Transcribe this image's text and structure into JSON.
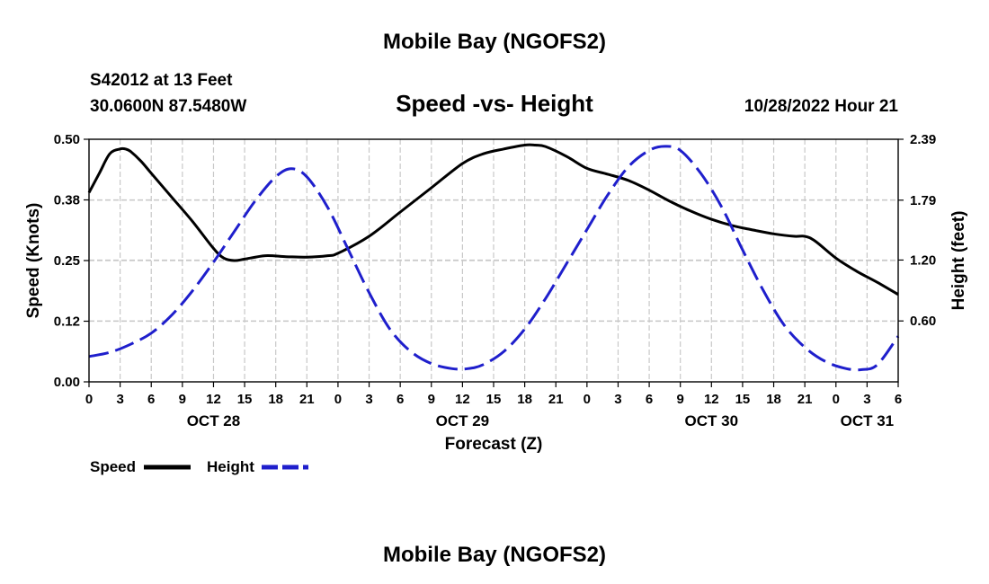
{
  "chart_data": {
    "type": "line",
    "title": "Mobile Bay (NGOFS2)",
    "station": "S42012 at 13 Feet",
    "location": "30.0600N  87.5480W",
    "subtitle": "Speed -vs- Height",
    "timestamp": "10/28/2022 Hour 21",
    "footer_title": "Mobile Bay (NGOFS2)",
    "xlabel": "Forecast (Z)",
    "ylabel_left": "Speed (Knots)",
    "ylabel_right": "Height (feet)",
    "x_unit": "hours from OCT 28 00Z",
    "xlim": [
      0,
      78
    ],
    "ylim_left": [
      0,
      0.5
    ],
    "ylim_right": [
      0,
      2.39
    ],
    "grid": true,
    "x_ticks": [
      {
        "x": 0,
        "label": "0"
      },
      {
        "x": 3,
        "label": "3"
      },
      {
        "x": 6,
        "label": "6"
      },
      {
        "x": 9,
        "label": "9"
      },
      {
        "x": 12,
        "label": "12"
      },
      {
        "x": 15,
        "label": "15"
      },
      {
        "x": 18,
        "label": "18"
      },
      {
        "x": 21,
        "label": "21"
      },
      {
        "x": 24,
        "label": "0"
      },
      {
        "x": 27,
        "label": "3"
      },
      {
        "x": 30,
        "label": "6"
      },
      {
        "x": 33,
        "label": "9"
      },
      {
        "x": 36,
        "label": "12"
      },
      {
        "x": 39,
        "label": "15"
      },
      {
        "x": 42,
        "label": "18"
      },
      {
        "x": 45,
        "label": "21"
      },
      {
        "x": 48,
        "label": "0"
      },
      {
        "x": 51,
        "label": "3"
      },
      {
        "x": 54,
        "label": "6"
      },
      {
        "x": 57,
        "label": "9"
      },
      {
        "x": 60,
        "label": "12"
      },
      {
        "x": 63,
        "label": "15"
      },
      {
        "x": 66,
        "label": "18"
      },
      {
        "x": 69,
        "label": "21"
      },
      {
        "x": 72,
        "label": "0"
      },
      {
        "x": 75,
        "label": "3"
      },
      {
        "x": 78,
        "label": "6"
      }
    ],
    "date_labels": [
      {
        "x": 12,
        "label": "OCT 28"
      },
      {
        "x": 36,
        "label": "OCT 29"
      },
      {
        "x": 60,
        "label": "OCT 30"
      },
      {
        "x": 75,
        "label": "OCT 31"
      }
    ],
    "y_ticks_left": [
      {
        "value": 0.0,
        "label": "0.00"
      },
      {
        "value": 0.125,
        "label": "0.12"
      },
      {
        "value": 0.25,
        "label": "0.25"
      },
      {
        "value": 0.375,
        "label": "0.38"
      },
      {
        "value": 0.5,
        "label": "0.50"
      }
    ],
    "y_ticks_right": [
      {
        "value": 0.6,
        "label": "0.60"
      },
      {
        "value": 1.2,
        "label": "1.20"
      },
      {
        "value": 1.79,
        "label": "1.79"
      },
      {
        "value": 2.39,
        "label": "2.39"
      }
    ],
    "series": [
      {
        "name": "Speed",
        "axis": "left",
        "color": "#000000",
        "dash": "solid",
        "x": [
          0,
          1,
          2,
          3,
          3.5,
          4,
          5,
          6,
          8,
          10,
          12,
          13,
          14,
          15,
          17,
          19,
          21,
          23,
          24,
          27,
          30,
          33,
          36,
          38,
          40,
          42,
          43,
          44,
          46,
          48,
          50,
          52,
          54,
          56,
          58,
          60,
          62,
          64,
          66,
          68,
          69,
          70,
          72,
          74,
          76,
          78
        ],
        "values": [
          0.39,
          0.43,
          0.47,
          0.48,
          0.48,
          0.475,
          0.455,
          0.43,
          0.38,
          0.33,
          0.275,
          0.255,
          0.25,
          0.253,
          0.26,
          0.258,
          0.257,
          0.26,
          0.265,
          0.3,
          0.35,
          0.4,
          0.45,
          0.47,
          0.48,
          0.488,
          0.488,
          0.485,
          0.465,
          0.44,
          0.428,
          0.415,
          0.395,
          0.372,
          0.352,
          0.335,
          0.322,
          0.313,
          0.305,
          0.3,
          0.3,
          0.29,
          0.255,
          0.228,
          0.205,
          0.18
        ]
      },
      {
        "name": "Height",
        "axis": "right",
        "color": "#1f1fcc",
        "dash": "dashed",
        "x": [
          0,
          2,
          4,
          6,
          8,
          10,
          12,
          14,
          16,
          18,
          19.5,
          21,
          23,
          25,
          27,
          29,
          31,
          33,
          35,
          36.5,
          38,
          40,
          42,
          44,
          46,
          48,
          50,
          52,
          54,
          55.5,
          57,
          59,
          61,
          63,
          65,
          67,
          69,
          71,
          73,
          74.5,
          76,
          78
        ],
        "values": [
          0.25,
          0.29,
          0.37,
          0.48,
          0.66,
          0.9,
          1.18,
          1.48,
          1.78,
          2.02,
          2.1,
          2.02,
          1.72,
          1.3,
          0.88,
          0.52,
          0.3,
          0.18,
          0.13,
          0.13,
          0.17,
          0.3,
          0.52,
          0.82,
          1.16,
          1.5,
          1.84,
          2.12,
          2.28,
          2.32,
          2.28,
          2.05,
          1.72,
          1.3,
          0.9,
          0.56,
          0.34,
          0.2,
          0.13,
          0.12,
          0.17,
          0.45
        ]
      }
    ],
    "legend": [
      {
        "label": "Speed",
        "color": "#000000",
        "dash": "solid"
      },
      {
        "label": "Height",
        "color": "#1f1fcc",
        "dash": "dashed"
      }
    ]
  }
}
